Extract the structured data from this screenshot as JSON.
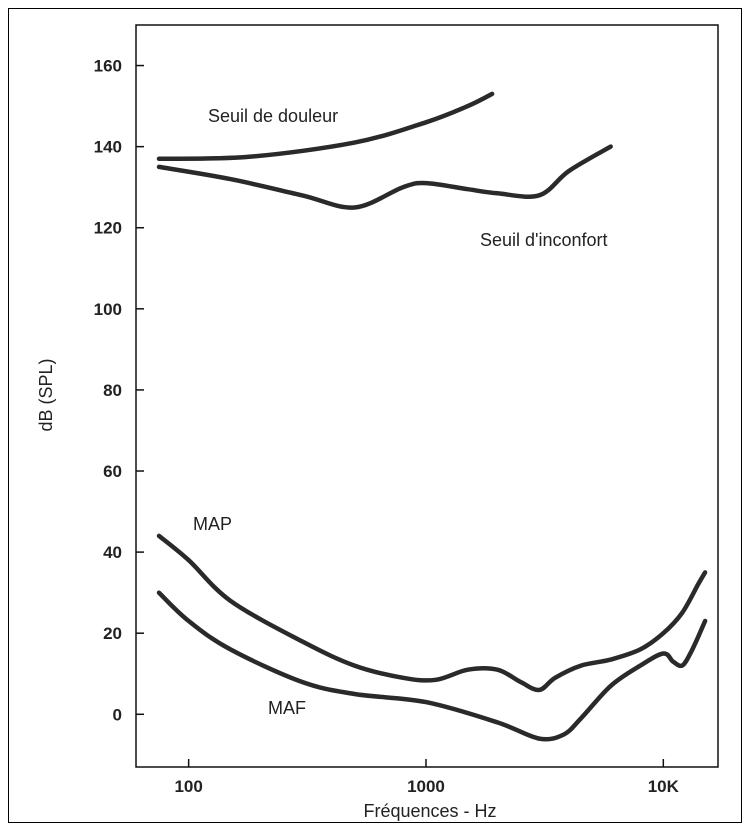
{
  "chart_data": {
    "type": "line",
    "xlabel": "Fréquences - Hz",
    "ylabel": "dB (SPL)",
    "xscale": "log",
    "xlim": [
      60,
      17000
    ],
    "ylim": [
      -13,
      170
    ],
    "x_ticks": [
      {
        "value": 100,
        "label": "100"
      },
      {
        "value": 1000,
        "label": "1000"
      },
      {
        "value": 10000,
        "label": "10K"
      }
    ],
    "y_ticks": [
      {
        "value": 0,
        "label": "0"
      },
      {
        "value": 20,
        "label": "20"
      },
      {
        "value": 40,
        "label": "40"
      },
      {
        "value": 60,
        "label": "60"
      },
      {
        "value": 80,
        "label": "80"
      },
      {
        "value": 100,
        "label": "100"
      },
      {
        "value": 120,
        "label": "120"
      },
      {
        "value": 140,
        "label": "140"
      },
      {
        "value": 160,
        "label": "160"
      }
    ],
    "grid": false,
    "series": [
      {
        "name": "Seuil de douleur",
        "x": [
          75,
          180,
          500,
          1000,
          1500,
          1900
        ],
        "y": [
          137,
          137.5,
          141,
          146,
          150,
          153
        ]
      },
      {
        "name": "Seuil d'inconfort",
        "x": [
          75,
          150,
          300,
          500,
          800,
          1000,
          1500,
          2000,
          3000,
          4000,
          6000
        ],
        "y": [
          135,
          132,
          128,
          125,
          130,
          131,
          129.5,
          128.5,
          128,
          134,
          140
        ]
      },
      {
        "name": "MAP",
        "x": [
          75,
          100,
          150,
          300,
          500,
          800,
          1100,
          1500,
          2000,
          2500,
          3000,
          3500,
          4500,
          6000,
          8000,
          10000,
          12000,
          14000,
          15000
        ],
        "y": [
          44,
          38,
          28,
          18,
          12,
          9,
          8.5,
          11,
          11,
          8,
          6,
          9,
          12,
          13.5,
          16,
          20,
          25,
          32,
          35
        ]
      },
      {
        "name": "MAF",
        "x": [
          75,
          100,
          150,
          300,
          500,
          1000,
          2000,
          3000,
          3800,
          4500,
          6000,
          8000,
          10000,
          11000,
          12000,
          13000,
          14000,
          15000
        ],
        "y": [
          30,
          23,
          16,
          8,
          5,
          3,
          -2,
          -6,
          -5,
          -1,
          7,
          12,
          15,
          13,
          12,
          15,
          19,
          23
        ]
      }
    ],
    "annotations": [
      {
        "text": "Seuil de douleur"
      },
      {
        "text": "Seuil d'inconfort"
      },
      {
        "text": "MAP"
      },
      {
        "text": "MAF"
      }
    ]
  }
}
